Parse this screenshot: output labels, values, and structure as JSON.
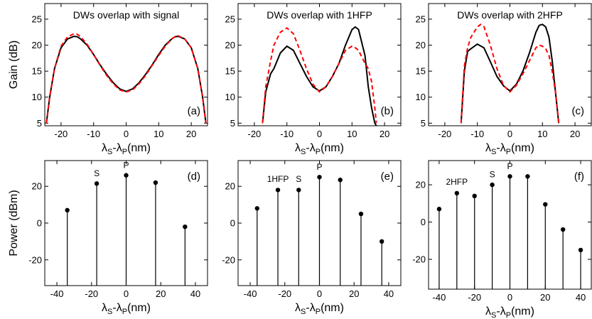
{
  "chart_data": [
    {
      "type": "line",
      "panel_label": "(a)",
      "title": "DWs overlap with signal",
      "ylabel": "Gain (dB)",
      "xlabel_main": "λ",
      "xlabel_sub1": "S",
      "xlabel_mid": "-λ",
      "xlabel_sub2": "P",
      "xlabel_unit": "(nm)",
      "xlim": [
        -25,
        25
      ],
      "ylim": [
        4.5,
        28
      ],
      "xticks": [
        "-20",
        "-10",
        "0",
        "10",
        "20"
      ],
      "yticks": [
        "5",
        "10",
        "15",
        "20",
        "25"
      ],
      "series": [
        {
          "style": "solid",
          "color": "#000000",
          "x": [
            -24.5,
            -23.5,
            -22,
            -20,
            -18,
            -16,
            -15,
            -14,
            -12,
            -10,
            -8,
            -6,
            -4,
            -2,
            0,
            2,
            4,
            6,
            8,
            10,
            12,
            14,
            15,
            16,
            18,
            20,
            22,
            23.5,
            24.5
          ],
          "y": [
            5,
            10,
            15.5,
            19.5,
            21.2,
            21.7,
            21.6,
            21.2,
            20,
            18.2,
            16.2,
            14.4,
            12.8,
            11.6,
            11.1,
            11.6,
            12.8,
            14.4,
            16.2,
            18.2,
            20,
            21.2,
            21.6,
            21.7,
            21.2,
            19.5,
            15.5,
            10,
            5
          ]
        },
        {
          "style": "dashed",
          "color": "#ff0000",
          "x": [
            -24.5,
            -23.5,
            -22,
            -20,
            -18,
            -16,
            -15,
            -14,
            -12,
            -10,
            -8,
            -6,
            -4,
            -2,
            0,
            2,
            4,
            6,
            8,
            10,
            12,
            14,
            15,
            16,
            18,
            20,
            22,
            23.5,
            24.5
          ],
          "y": [
            5,
            10,
            15.5,
            19.8,
            21.6,
            22.2,
            22.1,
            21.6,
            20.2,
            18.2,
            16.1,
            14.2,
            12.6,
            11.4,
            11.0,
            11.4,
            12.6,
            14.2,
            16.1,
            18.0,
            19.8,
            21.2,
            21.6,
            21.8,
            21.2,
            19.5,
            15.5,
            10,
            5
          ]
        }
      ]
    },
    {
      "type": "line",
      "panel_label": "(b)",
      "title": "DWs overlap with 1HFP",
      "xlabel_main": "λ",
      "xlabel_sub1": "S",
      "xlabel_mid": "-λ",
      "xlabel_sub2": "P",
      "xlabel_unit": "(nm)",
      "xlim": [
        -25,
        25
      ],
      "ylim": [
        4.5,
        28
      ],
      "xticks": [
        "-20",
        "-10",
        "0",
        "10",
        "20"
      ],
      "yticks": [
        "5",
        "10",
        "15",
        "20",
        "25"
      ],
      "series": [
        {
          "style": "solid",
          "color": "#000000",
          "x": [
            -17.5,
            -16.5,
            -15,
            -14,
            -13,
            -12,
            -10,
            -8,
            -6,
            -4,
            -2,
            0,
            2,
            4,
            6,
            8,
            10,
            11,
            12,
            14,
            15,
            16,
            17,
            17.5
          ],
          "y": [
            5,
            11,
            14.5,
            15.5,
            17,
            18.5,
            19.8,
            19,
            16.5,
            14,
            12,
            11.2,
            12,
            14,
            16.5,
            20,
            23,
            23.5,
            23,
            18,
            12,
            8,
            5,
            4.5
          ]
        },
        {
          "style": "dashed",
          "color": "#ff0000",
          "x": [
            -17.5,
            -16.5,
            -15,
            -14,
            -12,
            -10,
            -8,
            -6,
            -4,
            -2,
            0,
            2,
            4,
            6,
            8,
            10,
            11,
            12,
            14,
            15,
            16,
            17,
            17.5
          ],
          "y": [
            5,
            12,
            17,
            20,
            22.5,
            23.3,
            22.2,
            19,
            15.5,
            12.5,
            11,
            12,
            14,
            16.5,
            19,
            19.8,
            19.5,
            19,
            16.5,
            15.5,
            13,
            8,
            5
          ]
        }
      ]
    },
    {
      "type": "line",
      "panel_label": "(c)",
      "title": "DWs overlap with 2HFP",
      "xlabel_main": "λ",
      "xlabel_sub1": "S",
      "xlabel_mid": "-λ",
      "xlabel_sub2": "P",
      "xlabel_unit": "(nm)",
      "xlim": [
        -25,
        25
      ],
      "ylim": [
        4.5,
        28
      ],
      "xticks": [
        "-20",
        "-10",
        "0",
        "10",
        "20"
      ],
      "yticks": [
        "5",
        "10",
        "15",
        "20",
        "25"
      ],
      "series": [
        {
          "style": "solid",
          "color": "#000000",
          "x": [
            -15,
            -14,
            -13,
            -12,
            -10,
            -8,
            -6,
            -4,
            -2,
            0,
            2,
            4,
            6,
            8,
            9,
            10,
            11,
            12,
            13,
            14,
            15
          ],
          "y": [
            5,
            15,
            18.8,
            19.3,
            20.2,
            19.5,
            16.8,
            14,
            12.2,
            11.2,
            12.5,
            15,
            18.5,
            22.5,
            23.8,
            24,
            23.5,
            21.5,
            17,
            11,
            5
          ]
        },
        {
          "style": "dashed",
          "color": "#ff0000",
          "x": [
            -15,
            -14,
            -13,
            -12,
            -10,
            -9,
            -8,
            -6,
            -4,
            -2,
            0,
            2,
            4,
            6,
            8,
            9,
            10,
            11,
            12,
            13,
            14,
            15
          ],
          "y": [
            5,
            16,
            19.5,
            21.5,
            23.5,
            24,
            23.6,
            20,
            15.5,
            12.3,
            11,
            12.3,
            14.5,
            17,
            19.5,
            20,
            19.8,
            19.3,
            18,
            15,
            11,
            5
          ]
        }
      ]
    },
    {
      "type": "stem",
      "panel_label": "(d)",
      "ylabel": "Power (dBm)",
      "xlabel_main": "λ",
      "xlabel_sub1": "S",
      "xlabel_mid": "-λ",
      "xlabel_sub2": "P",
      "xlabel_unit": "(nm)",
      "xlim": [
        -47,
        47
      ],
      "ylim": [
        -34,
        34
      ],
      "xticks": [
        "-40",
        "-20",
        "0",
        "20",
        "40"
      ],
      "yticks": [
        "-20",
        "0",
        "20"
      ],
      "points": {
        "x": [
          -34,
          -17,
          0,
          17,
          34
        ],
        "y": [
          7,
          21.5,
          26,
          22,
          -2
        ]
      },
      "annotations": [
        {
          "text": "S",
          "x": -17,
          "y": 25.5
        },
        {
          "text": "P",
          "x": 0,
          "y": 30
        }
      ]
    },
    {
      "type": "stem",
      "panel_label": "(e)",
      "xlabel_main": "λ",
      "xlabel_sub1": "S",
      "xlabel_mid": "-λ",
      "xlabel_sub2": "P",
      "xlabel_unit": "(nm)",
      "xlim": [
        -47,
        47
      ],
      "ylim": [
        -34,
        34
      ],
      "xticks": [
        "-40",
        "-20",
        "0",
        "20",
        "40"
      ],
      "yticks": [
        "-20",
        "0",
        "20"
      ],
      "points": {
        "x": [
          -36,
          -24,
          -12,
          0,
          12,
          24,
          36
        ],
        "y": [
          8,
          18,
          18,
          25,
          23.5,
          5,
          -10
        ]
      },
      "annotations": [
        {
          "text": "1HFP",
          "x": -24,
          "y": 22.5
        },
        {
          "text": "S",
          "x": -12,
          "y": 22.5
        },
        {
          "text": "P",
          "x": 0,
          "y": 29
        }
      ]
    },
    {
      "type": "stem",
      "panel_label": "(f)",
      "xlabel_main": "λ",
      "xlabel_sub1": "S",
      "xlabel_mid": "-λ",
      "xlabel_sub2": "P",
      "xlabel_unit": "(nm)",
      "xlim": [
        -46,
        46
      ],
      "ylim": [
        -36,
        33
      ],
      "xticks": [
        "-40",
        "-20",
        "0",
        "20",
        "40"
      ],
      "yticks": [
        "-20",
        "0",
        "20"
      ],
      "points": {
        "x": [
          -40,
          -30,
          -20,
          -10,
          0,
          10,
          20,
          30,
          40
        ],
        "y": [
          7,
          15.5,
          14,
          20,
          24.5,
          24.5,
          9.5,
          -4,
          -15
        ]
      },
      "annotations": [
        {
          "text": "2HFP",
          "x": -30,
          "y": 20
        },
        {
          "text": "S",
          "x": -10,
          "y": 24
        },
        {
          "text": "P",
          "x": 0,
          "y": 28.5
        }
      ]
    }
  ]
}
